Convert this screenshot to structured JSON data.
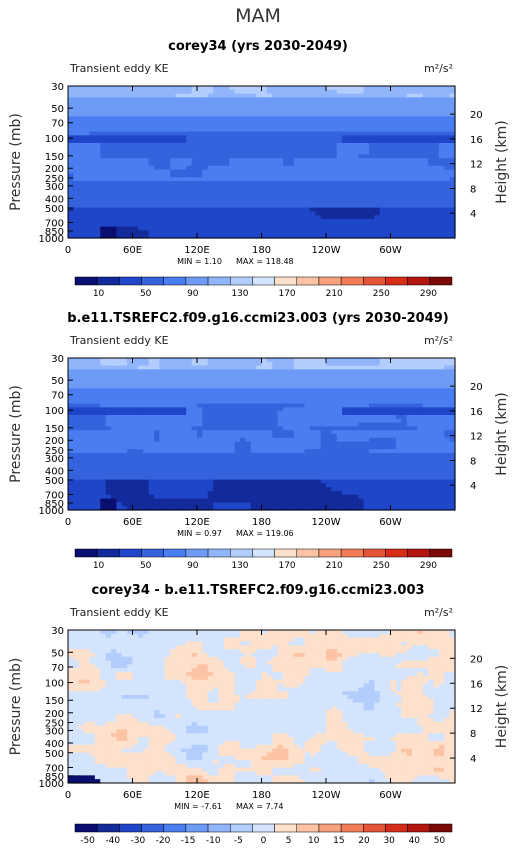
{
  "page_title": "MAM",
  "colors": {
    "abs_scale": [
      "#0a0e6e",
      "#122a9a",
      "#1f45c8",
      "#3563de",
      "#4a7ef0",
      "#6e9bf6",
      "#90b5fa",
      "#b3cdfc",
      "#d4e4fd",
      "#fde1cc",
      "#fcc3a4",
      "#f6a07c",
      "#f07c58",
      "#e55436",
      "#d62d1a",
      "#b31510",
      "#7a0a06"
    ],
    "diff_scale": [
      "#0a0e6e",
      "#122a9a",
      "#1f45c8",
      "#3563de",
      "#4a7ef0",
      "#6e9bf6",
      "#90b5fa",
      "#b3cdfc",
      "#d4e4fd",
      "#fde1cc",
      "#fcc3a4",
      "#f6a07c",
      "#f07c58",
      "#e55436",
      "#d62d1a",
      "#b31510",
      "#7a0a06"
    ]
  },
  "chart_data": [
    {
      "type": "heatmap",
      "title": "corey34 (yrs 2030-2049)",
      "left_label": "Transient eddy KE",
      "unit_label": "m²/s²",
      "ylabel": "Pressure (mb)",
      "ylabel_right": "Height (km)",
      "x_ticks": [
        "0",
        "60E",
        "120E",
        "180",
        "120W",
        "60W"
      ],
      "x_tick_values": [
        0,
        60,
        120,
        180,
        240,
        300
      ],
      "xlim": [
        0,
        360
      ],
      "y_ticks": [
        "30",
        "50",
        "70",
        "100",
        "150",
        "200",
        "250",
        "300",
        "400",
        "500",
        "700",
        "850",
        "1000"
      ],
      "y_tick_values": [
        30,
        50,
        70,
        100,
        150,
        200,
        250,
        300,
        400,
        500,
        700,
        850,
        1000
      ],
      "ylim": [
        30,
        1000
      ],
      "y_scale": "log",
      "right_ticks": [
        "4",
        "8",
        "12",
        "16",
        "20"
      ],
      "right_tick_values": [
        4,
        8,
        12,
        16,
        20
      ],
      "min_label": "MIN = 1.10",
      "max_label": "MAX = 118.48",
      "min": 1.1,
      "max": 118.48,
      "colorbar_labels": [
        "10",
        "50",
        "90",
        "130",
        "170",
        "210",
        "250",
        "290"
      ],
      "field": "abs"
    },
    {
      "type": "heatmap",
      "title": "b.e11.TSREFC2.f09.g16.ccmi23.003 (yrs 2030-2049)",
      "left_label": "Transient eddy KE",
      "unit_label": "m²/s²",
      "ylabel": "Pressure (mb)",
      "ylabel_right": "Height (km)",
      "x_ticks": [
        "0",
        "60E",
        "120E",
        "180",
        "120W",
        "60W"
      ],
      "x_tick_values": [
        0,
        60,
        120,
        180,
        240,
        300
      ],
      "xlim": [
        0,
        360
      ],
      "y_ticks": [
        "30",
        "50",
        "70",
        "100",
        "150",
        "200",
        "250",
        "300",
        "400",
        "500",
        "700",
        "850",
        "1000"
      ],
      "y_tick_values": [
        30,
        50,
        70,
        100,
        150,
        200,
        250,
        300,
        400,
        500,
        700,
        850,
        1000
      ],
      "ylim": [
        30,
        1000
      ],
      "y_scale": "log",
      "right_ticks": [
        "4",
        "8",
        "12",
        "16",
        "20"
      ],
      "right_tick_values": [
        4,
        8,
        12,
        16,
        20
      ],
      "min_label": "MIN = 0.97",
      "max_label": "MAX = 119.06",
      "min": 0.97,
      "max": 119.06,
      "colorbar_labels": [
        "10",
        "50",
        "90",
        "130",
        "170",
        "210",
        "250",
        "290"
      ],
      "field": "abs"
    },
    {
      "type": "heatmap",
      "title": "corey34 - b.e11.TSREFC2.f09.g16.ccmi23.003",
      "left_label": "Transient eddy KE",
      "unit_label": "m²/s²",
      "ylabel": "Pressure (mb)",
      "ylabel_right": "Height (km)",
      "x_ticks": [
        "0",
        "60E",
        "120E",
        "180",
        "120W",
        "60W"
      ],
      "x_tick_values": [
        0,
        60,
        120,
        180,
        240,
        300
      ],
      "xlim": [
        0,
        360
      ],
      "y_ticks": [
        "30",
        "50",
        "70",
        "100",
        "150",
        "200",
        "250",
        "300",
        "400",
        "500",
        "700",
        "850",
        "1000"
      ],
      "y_tick_values": [
        30,
        50,
        70,
        100,
        150,
        200,
        250,
        300,
        400,
        500,
        700,
        850,
        1000
      ],
      "ylim": [
        30,
        1000
      ],
      "y_scale": "log",
      "right_ticks": [
        "4",
        "8",
        "12",
        "16",
        "20"
      ],
      "right_tick_values": [
        4,
        8,
        12,
        16,
        20
      ],
      "min_label": "MIN = -7.61",
      "max_label": "MAX = 7.74",
      "min": -7.61,
      "max": 7.74,
      "colorbar_labels": [
        "-50",
        "-40",
        "-30",
        "-20",
        "-15",
        "-10",
        "-5",
        "0",
        "5",
        "10",
        "15",
        "20",
        "30",
        "40",
        "50"
      ],
      "field": "diff"
    }
  ]
}
